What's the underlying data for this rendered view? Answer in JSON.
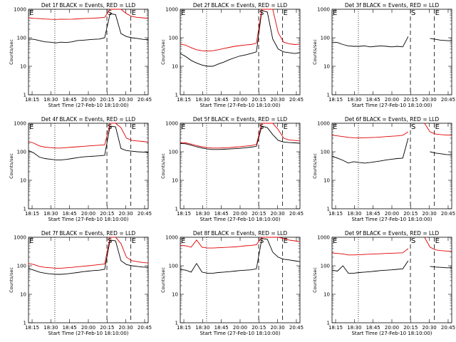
{
  "chart_data": [
    {
      "type": "line",
      "title": "Det 1f BLACK = Events, RED = LLD",
      "xlabel": "Start Time (27-Feb-10 18:10:00)",
      "ylabel": "Counts/sec",
      "ylog": true,
      "xticks": [
        "18:15",
        "18:30",
        "18:45",
        "20:00",
        "20:15",
        "20:30",
        "20:45"
      ],
      "yticks": [
        "1",
        "10",
        "100",
        "1000"
      ],
      "ylim": [
        1,
        1000
      ],
      "markers": [
        "E",
        "S",
        "E"
      ],
      "series": [
        {
          "name": "Events",
          "color": "#000000",
          "values": [
            90,
            88,
            80,
            72,
            70,
            66,
            70,
            68,
            72,
            80,
            82,
            85,
            88,
            90,
            100,
            700,
            650,
            140,
            110,
            100,
            95,
            88,
            85
          ]
        },
        {
          "name": "LLD",
          "color": "#e00000",
          "values": [
            500,
            480,
            470,
            455,
            445,
            440,
            450,
            445,
            450,
            460,
            470,
            480,
            490,
            500,
            520,
            1000,
            1000,
            1000,
            700,
            560,
            520,
            500,
            480
          ]
        }
      ]
    },
    {
      "type": "line",
      "title": "Det 2f BLACK = Events, RED = LLD",
      "xlabel": "Start Time (27-Feb-10 18:10:00)",
      "ylabel": "Counts/sec",
      "ylog": true,
      "xticks": [
        "18:15",
        "18:30",
        "18:45",
        "20:00",
        "20:15",
        "20:30",
        "20:45"
      ],
      "yticks": [
        "1",
        "10",
        "100",
        "1000"
      ],
      "ylim": [
        1,
        1000
      ],
      "markers": [
        "E",
        "S",
        "E"
      ],
      "series": [
        {
          "name": "Events",
          "color": "#000000",
          "values": [
            28,
            22,
            16,
            13,
            11,
            10,
            10,
            12,
            14,
            17,
            20,
            23,
            25,
            28,
            32,
            900,
            800,
            90,
            40,
            32,
            30,
            28,
            30
          ]
        },
        {
          "name": "LLD",
          "color": "#e00000",
          "values": [
            60,
            55,
            45,
            38,
            35,
            34,
            35,
            38,
            42,
            46,
            50,
            53,
            56,
            58,
            65,
            1000,
            1000,
            1000,
            150,
            70,
            62,
            58,
            60
          ]
        }
      ]
    },
    {
      "type": "line",
      "title": "Det 3f BLACK = Events, RED = LLD",
      "xlabel": "Start Time (27-Feb-10 18:10:00)",
      "ylabel": "Counts/sec",
      "ylog": true,
      "xticks": [
        "18:15",
        "18:30",
        "18:45",
        "20:00",
        "20:15",
        "20:30",
        "20:45"
      ],
      "yticks": [
        "1",
        "10",
        "100",
        "1000"
      ],
      "ylim": [
        1,
        1000
      ],
      "markers": [
        "E",
        "S",
        "E"
      ],
      "series": [
        {
          "name": "Events",
          "color": "#000000",
          "values": [
            70,
            68,
            58,
            52,
            50,
            50,
            52,
            48,
            50,
            52,
            50,
            48,
            50,
            48,
            110,
            null,
            null,
            null,
            95,
            88,
            82,
            80,
            78
          ]
        }
      ]
    },
    {
      "type": "line",
      "title": "Det 4f BLACK = Events, RED = LLD",
      "xlabel": "Start Time (27-Feb-10 18:10:00)",
      "ylabel": "Counts/sec",
      "ylog": true,
      "xticks": [
        "18:15",
        "18:30",
        "18:45",
        "20:00",
        "20:15",
        "20:30",
        "20:45"
      ],
      "yticks": [
        "1",
        "10",
        "100",
        "1000"
      ],
      "ylim": [
        1,
        1000
      ],
      "markers": [
        "E",
        "S",
        "E"
      ],
      "series": [
        {
          "name": "Events",
          "color": "#000000",
          "values": [
            110,
            90,
            65,
            58,
            55,
            52,
            52,
            54,
            58,
            62,
            66,
            68,
            70,
            72,
            75,
            800,
            750,
            130,
            110,
            105,
            100,
            98,
            95
          ]
        },
        {
          "name": "LLD",
          "color": "#e00000",
          "values": [
            230,
            200,
            160,
            145,
            140,
            135,
            135,
            140,
            145,
            150,
            155,
            160,
            165,
            170,
            175,
            1000,
            1000,
            700,
            300,
            250,
            240,
            230,
            220
          ]
        }
      ]
    },
    {
      "type": "line",
      "title": "Det 5f BLACK = Events, RED = LLD",
      "xlabel": "Start Time (27-Feb-10 18:10:00)",
      "ylabel": "Counts/sec",
      "ylog": true,
      "xticks": [
        "18:15",
        "18:30",
        "18:45",
        "20:00",
        "20:15",
        "20:30",
        "20:45"
      ],
      "yticks": [
        "1",
        "10",
        "100",
        "1000"
      ],
      "ylim": [
        1,
        1000
      ],
      "markers": [
        "E",
        "S",
        "E"
      ],
      "series": [
        {
          "name": "Events",
          "color": "#000000",
          "values": [
            195,
            190,
            170,
            150,
            135,
            125,
            120,
            120,
            122,
            125,
            128,
            132,
            138,
            145,
            155,
            800,
            700,
            400,
            250,
            220,
            210,
            205,
            200
          ]
        },
        {
          "name": "LLD",
          "color": "#e00000",
          "values": [
            210,
            205,
            185,
            165,
            150,
            140,
            135,
            135,
            138,
            140,
            145,
            150,
            158,
            165,
            180,
            1000,
            1000,
            1000,
            600,
            300,
            260,
            250,
            240
          ]
        }
      ]
    },
    {
      "type": "line",
      "title": "Det 6f BLACK = Events, RED = LLD",
      "xlabel": "Start Time (27-Feb-10 18:10:00)",
      "ylabel": "Counts/sec",
      "ylog": true,
      "xticks": [
        "18:15",
        "18:30",
        "18:45",
        "20:00",
        "20:15",
        "20:30",
        "20:45"
      ],
      "yticks": [
        "1",
        "10",
        "100",
        "1000"
      ],
      "ylim": [
        1,
        1000
      ],
      "markers": [
        "E",
        "S",
        "E"
      ],
      "series": [
        {
          "name": "Events",
          "color": "#000000",
          "values": [
            70,
            60,
            50,
            40,
            45,
            42,
            40,
            42,
            45,
            48,
            52,
            55,
            58,
            60,
            300,
            null,
            null,
            null,
            100,
            90,
            85,
            80,
            78
          ]
        },
        {
          "name": "LLD",
          "color": "#e00000",
          "values": [
            380,
            360,
            340,
            320,
            310,
            305,
            310,
            315,
            320,
            330,
            340,
            350,
            360,
            380,
            500,
            null,
            null,
            1000,
            500,
            420,
            400,
            390,
            380
          ]
        }
      ]
    },
    {
      "type": "line",
      "title": "Det 7f BLACK = Events, RED = LLD",
      "xlabel": "Start Time (27-Feb-10 18:10:00)",
      "ylabel": "Counts/sec",
      "ylog": true,
      "xticks": [
        "18:15",
        "18:30",
        "18:45",
        "20:00",
        "20:15",
        "20:30",
        "20:45"
      ],
      "yticks": [
        "1",
        "10",
        "100",
        "1000"
      ],
      "ylim": [
        1,
        1000
      ],
      "markers": [
        "E",
        "S",
        "E"
      ],
      "series": [
        {
          "name": "Events",
          "color": "#000000",
          "values": [
            80,
            70,
            60,
            55,
            52,
            50,
            50,
            52,
            55,
            58,
            62,
            65,
            68,
            70,
            75,
            800,
            750,
            150,
            110,
            100,
            95,
            90,
            88
          ]
        },
        {
          "name": "LLD",
          "color": "#e00000",
          "values": [
            120,
            110,
            95,
            88,
            85,
            82,
            82,
            85,
            88,
            92,
            96,
            100,
            105,
            110,
            115,
            1000,
            1000,
            600,
            200,
            150,
            140,
            130,
            125
          ]
        }
      ]
    },
    {
      "type": "line",
      "title": "Det 8f BLACK = Events, RED = LLD",
      "xlabel": "Start Time (27-Feb-10 18:10:00)",
      "ylabel": "Counts/sec",
      "ylog": true,
      "xticks": [
        "18:15",
        "18:30",
        "18:45",
        "20:00",
        "20:15",
        "20:30",
        "20:45"
      ],
      "yticks": [
        "1",
        "10",
        "100",
        "1000"
      ],
      "ylim": [
        1,
        1000
      ],
      "markers": [
        "E",
        "S",
        "E"
      ],
      "series": [
        {
          "name": "Events",
          "color": "#000000",
          "values": [
            75,
            70,
            60,
            120,
            60,
            55,
            55,
            58,
            60,
            62,
            65,
            68,
            70,
            72,
            78,
            900,
            850,
            300,
            200,
            170,
            160,
            150,
            140
          ]
        },
        {
          "name": "LLD",
          "color": "#e00000",
          "values": [
            520,
            500,
            450,
            800,
            450,
            420,
            420,
            430,
            440,
            450,
            460,
            480,
            500,
            520,
            550,
            1000,
            1000,
            1000,
            1000,
            900,
            800,
            750,
            700
          ]
        }
      ]
    },
    {
      "type": "line",
      "title": "Det 9f BLACK = Events, RED = LLD",
      "xlabel": "Start Time (27-Feb-10 18:10:00)",
      "ylabel": "Counts/sec",
      "ylog": true,
      "xticks": [
        "18:15",
        "18:30",
        "18:45",
        "20:00",
        "20:15",
        "20:30",
        "20:45"
      ],
      "yticks": [
        "1",
        "10",
        "100",
        "1000"
      ],
      "ylim": [
        1,
        1000
      ],
      "markers": [
        "E",
        "S",
        "E"
      ],
      "series": [
        {
          "name": "Events",
          "color": "#000000",
          "values": [
            70,
            65,
            100,
            55,
            55,
            58,
            60,
            62,
            65,
            68,
            70,
            72,
            75,
            78,
            150,
            null,
            null,
            null,
            95,
            90,
            88,
            85,
            85
          ]
        },
        {
          "name": "LLD",
          "color": "#e00000",
          "values": [
            280,
            270,
            260,
            240,
            240,
            245,
            250,
            255,
            260,
            265,
            270,
            275,
            280,
            285,
            400,
            null,
            null,
            1000,
            450,
            360,
            340,
            330,
            320
          ]
        }
      ]
    }
  ]
}
